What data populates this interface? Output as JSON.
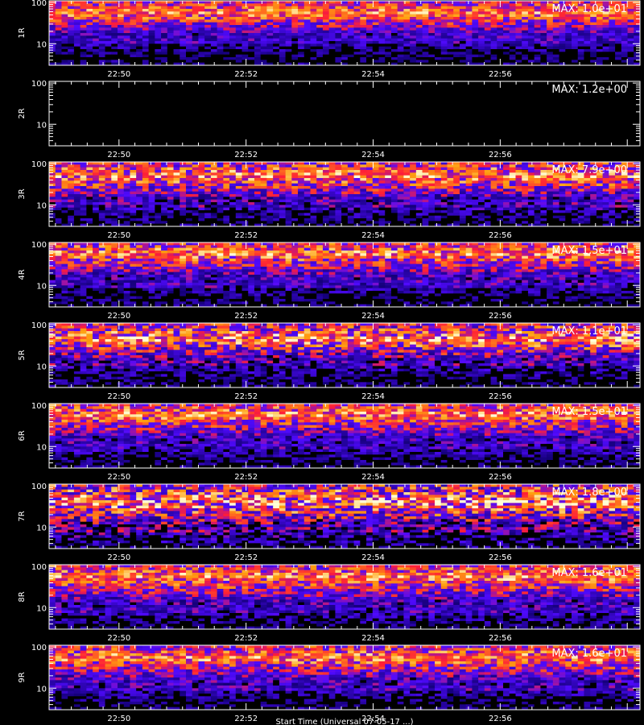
{
  "chart_data": {
    "type": "heatmap",
    "title": "",
    "xlabel": "Start Time (Universal 07-05-17 ...)",
    "x_tick_labels": [
      "22:50",
      "22:52",
      "22:54",
      "22:56"
    ],
    "x_tick_minutes": [
      50,
      52,
      54,
      56
    ],
    "x_range_minutes": [
      48.9,
      58.2
    ],
    "y_scale": "log",
    "y_tick_labels": [
      "100",
      "10"
    ],
    "y_range": [
      3,
      110
    ],
    "colormap": [
      "#000000",
      "#1a1aff",
      "#ff2a10",
      "#ffff60"
    ],
    "panels": [
      {
        "label": "1R",
        "max_label": "MAX: 1.0e+01",
        "empty": false,
        "upper_edge": 100,
        "lower_edge": 10,
        "peak": 55,
        "speckle": 0.45
      },
      {
        "label": "2R",
        "max_label": "MAX: 1.2e+00",
        "empty": true
      },
      {
        "label": "3R",
        "max_label": "MAX: 7.9e+00",
        "empty": false,
        "upper_edge": 100,
        "lower_edge": 8,
        "peak": 50,
        "speckle": 0.55
      },
      {
        "label": "4R",
        "max_label": "MAX: 1.5e+01",
        "empty": false,
        "upper_edge": 100,
        "lower_edge": 9,
        "peak": 58,
        "speckle": 0.5
      },
      {
        "label": "5R",
        "max_label": "MAX: 1.1e+01",
        "empty": false,
        "upper_edge": 100,
        "lower_edge": 10,
        "peak": 45,
        "speckle": 0.6
      },
      {
        "label": "6R",
        "max_label": "MAX: 1.5e+01",
        "empty": false,
        "upper_edge": 100,
        "lower_edge": 8,
        "peak": 60,
        "speckle": 0.5
      },
      {
        "label": "7R",
        "max_label": "MAX: 1.8e+00",
        "empty": false,
        "upper_edge": 100,
        "lower_edge": 7,
        "peak": 40,
        "speckle": 0.7
      },
      {
        "label": "8R",
        "max_label": "MAX: 1.6e+01",
        "empty": false,
        "upper_edge": 100,
        "lower_edge": 7,
        "peak": 55,
        "speckle": 0.5
      },
      {
        "label": "9R",
        "max_label": "MAX: 1.6e+01",
        "empty": false,
        "upper_edge": 100,
        "lower_edge": 9,
        "peak": 55,
        "speckle": 0.5
      }
    ]
  }
}
